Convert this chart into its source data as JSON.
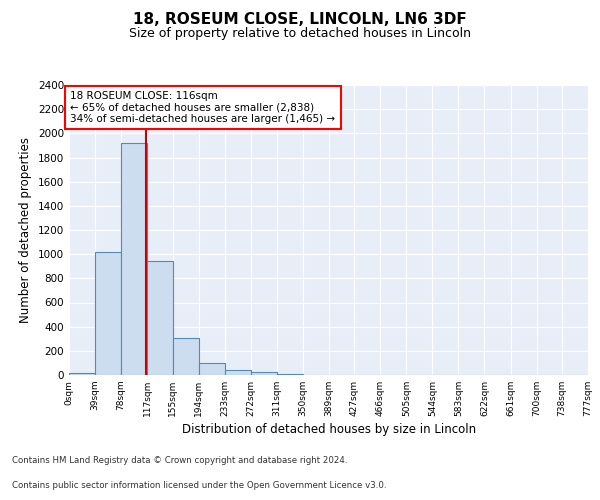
{
  "title1": "18, ROSEUM CLOSE, LINCOLN, LN6 3DF",
  "title2": "Size of property relative to detached houses in Lincoln",
  "xlabel": "Distribution of detached houses by size in Lincoln",
  "ylabel": "Number of detached properties",
  "footer1": "Contains HM Land Registry data © Crown copyright and database right 2024.",
  "footer2": "Contains public sector information licensed under the Open Government Licence v3.0.",
  "bar_color": "#ccddf0",
  "bar_edge_color": "#5588bb",
  "background_color": "#e8eef8",
  "annotation_line1": "18 ROSEUM CLOSE: 116sqm",
  "annotation_line2": "← 65% of detached houses are smaller (2,838)",
  "annotation_line3": "34% of semi-detached houses are larger (1,465) →",
  "property_size": 116,
  "red_line_color": "#cc0000",
  "ylim": [
    0,
    2400
  ],
  "yticks": [
    0,
    200,
    400,
    600,
    800,
    1000,
    1200,
    1400,
    1600,
    1800,
    2000,
    2200,
    2400
  ],
  "bin_edges": [
    0,
    39,
    78,
    117,
    155,
    194,
    233,
    272,
    311,
    350,
    389,
    427,
    466,
    505,
    544,
    583,
    622,
    661,
    700,
    738,
    777
  ],
  "bin_labels": [
    "0sqm",
    "39sqm",
    "78sqm",
    "117sqm",
    "155sqm",
    "194sqm",
    "233sqm",
    "272sqm",
    "311sqm",
    "350sqm",
    "389sqm",
    "427sqm",
    "466sqm",
    "505sqm",
    "544sqm",
    "583sqm",
    "622sqm",
    "661sqm",
    "700sqm",
    "738sqm",
    "777sqm"
  ],
  "bar_heights": [
    20,
    1020,
    1920,
    940,
    310,
    100,
    45,
    25,
    5,
    2,
    1,
    0,
    0,
    0,
    0,
    0,
    0,
    0,
    0,
    0
  ]
}
